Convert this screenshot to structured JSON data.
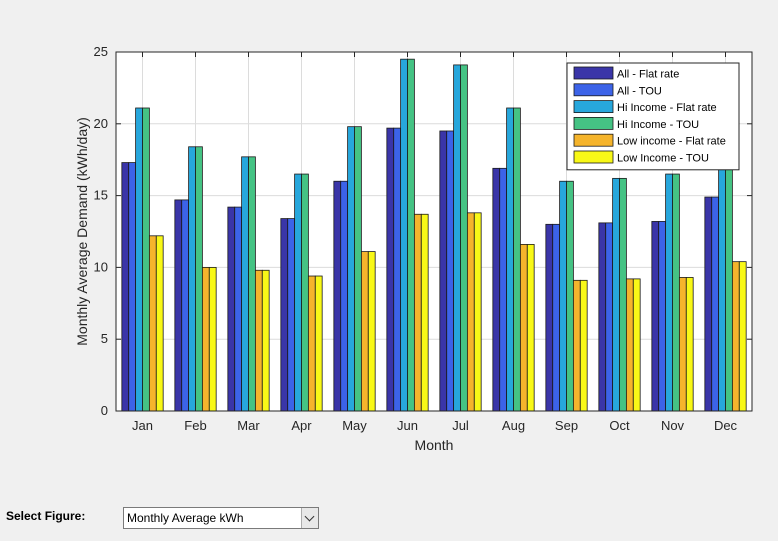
{
  "figure": {
    "select_label": "Select Figure:",
    "select_value": "Monthly Average kWh",
    "select_icon": "chevron-down-icon"
  },
  "chart_data": {
    "type": "bar",
    "title": "",
    "xlabel": "Month",
    "ylabel": "Monthly Average Demand (kWh/day)",
    "ylim": [
      0,
      25
    ],
    "yticks": [
      "0",
      "5",
      "10",
      "15",
      "20",
      "25"
    ],
    "grid": true,
    "legend_position": "top-right",
    "categories": [
      "Jan",
      "Feb",
      "Mar",
      "Apr",
      "May",
      "Jun",
      "Jul",
      "Aug",
      "Sep",
      "Oct",
      "Nov",
      "Dec"
    ],
    "series": [
      {
        "name": "All - Flat rate",
        "color": "#3a35a8",
        "values": [
          17.3,
          14.7,
          14.2,
          13.4,
          16.0,
          19.7,
          19.5,
          16.9,
          13.0,
          13.1,
          13.2,
          14.9
        ]
      },
      {
        "name": "All - TOU",
        "color": "#3c63e8",
        "values": [
          17.3,
          14.7,
          14.2,
          13.4,
          16.0,
          19.7,
          19.5,
          16.9,
          13.0,
          13.1,
          13.2,
          14.9
        ]
      },
      {
        "name": "Hi Income - Flat rate",
        "color": "#27a7dc",
        "values": [
          21.1,
          18.4,
          17.7,
          16.5,
          19.8,
          24.5,
          24.1,
          21.1,
          16.0,
          16.2,
          16.5,
          18.4
        ]
      },
      {
        "name": "Hi Income - TOU",
        "color": "#45c384",
        "values": [
          21.1,
          18.4,
          17.7,
          16.5,
          19.8,
          24.5,
          24.1,
          21.1,
          16.0,
          16.2,
          16.5,
          18.4
        ]
      },
      {
        "name": "Low income - Flat rate",
        "color": "#f5b42c",
        "values": [
          12.2,
          10.0,
          9.8,
          9.4,
          11.1,
          13.7,
          13.8,
          11.6,
          9.1,
          9.2,
          9.3,
          10.4
        ]
      },
      {
        "name": "Low Income - TOU",
        "color": "#f8f817",
        "values": [
          12.2,
          10.0,
          9.8,
          9.4,
          11.1,
          13.7,
          13.8,
          11.6,
          9.1,
          9.2,
          9.3,
          10.4
        ]
      }
    ]
  }
}
